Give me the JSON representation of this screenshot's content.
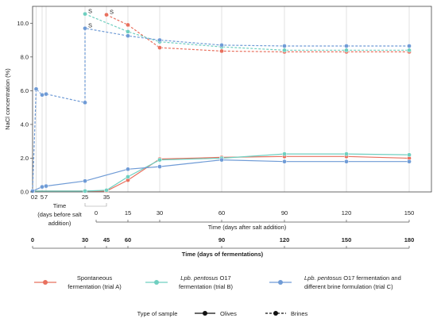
{
  "chart_data": {
    "type": "line",
    "ylabel": "NaCl concentration (%)",
    "ylim": [
      0,
      11
    ],
    "yticks": [
      "0.0",
      "2.0",
      "4.0",
      "6.0",
      "8.0",
      "10.0"
    ],
    "x_axis_before": {
      "title_line1": "Time",
      "title_line2": "(days before salt",
      "title_line3": "addition)",
      "ticks": [
        "0",
        "2",
        "5",
        "7",
        "25",
        "35"
      ]
    },
    "x_axis_after": {
      "title": "Time (days after salt addition)",
      "ticks": [
        "0",
        "15",
        "30",
        "60",
        "90",
        "120",
        "150"
      ]
    },
    "x_axis_total": {
      "title": "Time (days of fermentations)",
      "ticks": [
        "0",
        "30",
        "45",
        "60",
        "90",
        "120",
        "150",
        "180"
      ]
    },
    "series": [
      {
        "name": "Spontaneous fermentation (trial A)",
        "legend_line1": "Spontaneous",
        "legend_line2": "fermentation (trial A)",
        "color": "#e8705e",
        "olives": [
          [
            0,
            0.05
          ],
          [
            35,
            0.05
          ],
          [
            50,
            0.7
          ],
          [
            65,
            1.95
          ],
          [
            95,
            2.05
          ],
          [
            125,
            2.1
          ],
          [
            155,
            2.1
          ],
          [
            185,
            2.0
          ]
        ],
        "brines": [
          [
            35,
            10.5
          ],
          [
            50,
            9.9
          ],
          [
            65,
            8.55
          ],
          [
            95,
            8.35
          ],
          [
            125,
            8.3
          ],
          [
            155,
            8.3
          ],
          [
            185,
            8.3
          ]
        ]
      },
      {
        "name": "Lpb. pentosus O17 fermentation (trial B)",
        "legend_line1_italic": "Lpb. pentosus",
        "legend_line1_rest": " O17",
        "legend_line2": "fermentation (trial B)",
        "color": "#6fcfc0",
        "olives": [
          [
            0,
            0.05
          ],
          [
            25,
            0.05
          ],
          [
            35,
            0.1
          ],
          [
            50,
            0.9
          ],
          [
            65,
            1.9
          ],
          [
            95,
            2.0
          ],
          [
            125,
            2.25
          ],
          [
            155,
            2.25
          ],
          [
            185,
            2.2
          ]
        ],
        "brines": [
          [
            25,
            10.55
          ],
          [
            50,
            9.5
          ],
          [
            65,
            8.9
          ],
          [
            95,
            8.6
          ],
          [
            125,
            8.4
          ],
          [
            155,
            8.4
          ],
          [
            185,
            8.4
          ]
        ]
      },
      {
        "name": "Lpb. pentosus O17 fermentation and different brine formulation (trial C)",
        "legend_line1_italic": "Lpb. pentosus",
        "legend_line1_rest": " O17 fermentation and",
        "legend_line2": "different brine formulation (trial C)",
        "color": "#6f9bd6",
        "olives": [
          [
            0,
            0.05
          ],
          [
            5,
            0.3
          ],
          [
            7,
            0.35
          ],
          [
            25,
            0.65
          ],
          [
            50,
            1.35
          ],
          [
            65,
            1.5
          ],
          [
            95,
            1.9
          ],
          [
            125,
            1.8
          ],
          [
            155,
            1.8
          ],
          [
            185,
            1.8
          ]
        ],
        "brines": [
          [
            0,
            0.05
          ],
          [
            2,
            6.1
          ],
          [
            5,
            5.75
          ],
          [
            7,
            5.8
          ],
          [
            25,
            5.3
          ],
          [
            25,
            9.7
          ],
          [
            50,
            9.25
          ],
          [
            65,
            9.0
          ],
          [
            95,
            8.7
          ],
          [
            125,
            8.65
          ],
          [
            155,
            8.65
          ],
          [
            185,
            8.65
          ]
        ]
      }
    ],
    "annotations": [
      {
        "text": "S",
        "x": 25,
        "y": 10.55
      },
      {
        "text": "S",
        "x": 25,
        "y": 9.7
      },
      {
        "text": "S",
        "x": 35,
        "y": 10.5
      }
    ],
    "legend": {
      "type_label": "Type of sample",
      "olives_label": "Olives",
      "brines_label": "Brines"
    }
  }
}
